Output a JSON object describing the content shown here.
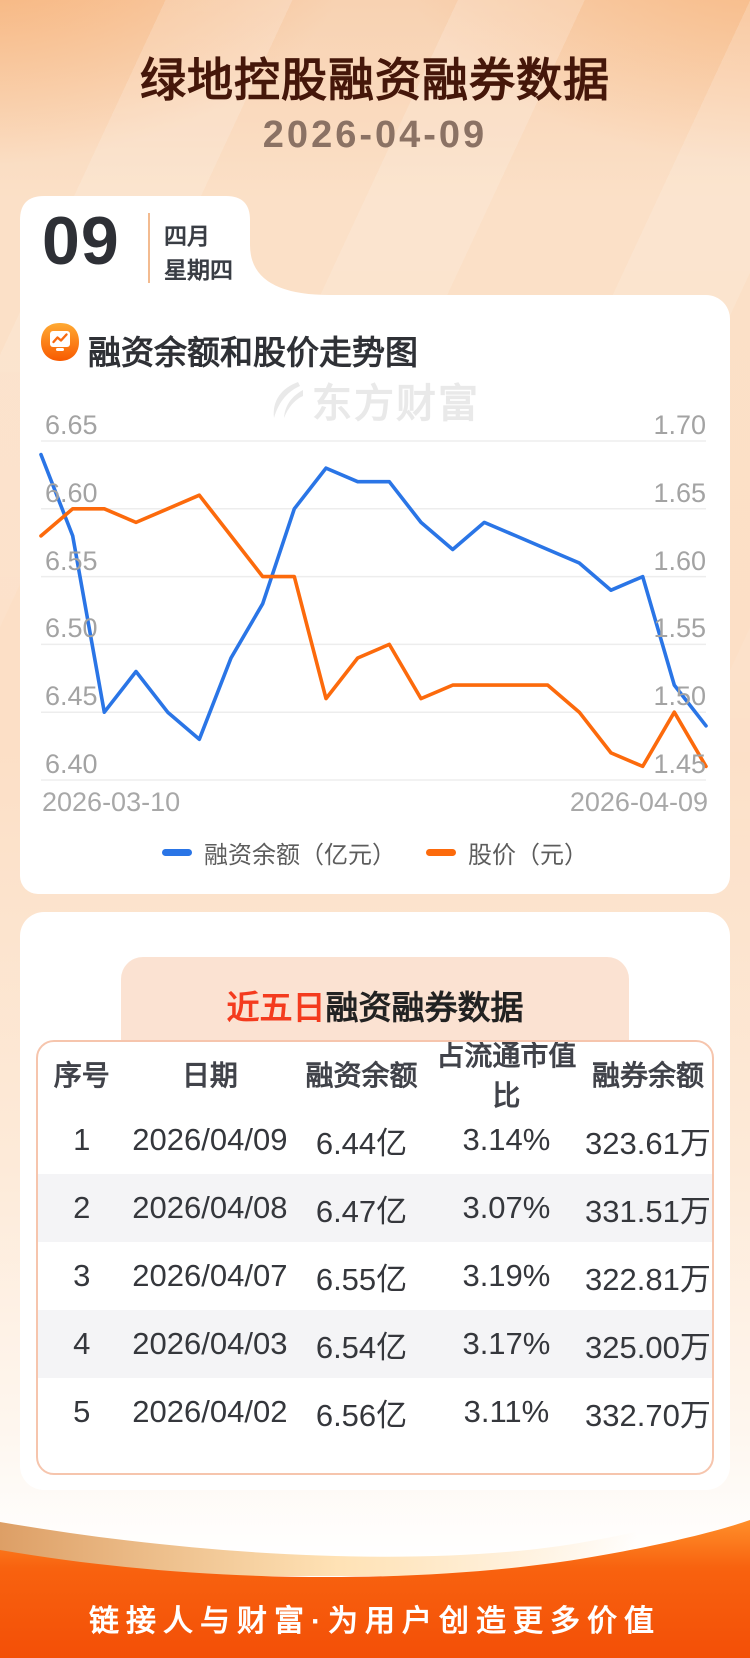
{
  "header": {
    "title": "绿地控股融资融券数据",
    "date": "2026-04-09"
  },
  "calendar": {
    "day": "09",
    "month": "四月",
    "weekday": "星期四"
  },
  "chart_section": {
    "title": "融资余额和股价走势图"
  },
  "watermark": {
    "text": "东方财富"
  },
  "chart_data": {
    "type": "line",
    "title": "融资余额和股价走势图",
    "x_start_label": "2026-03-10",
    "x_end_label": "2026-04-09",
    "grid": true,
    "legend_position": "bottom",
    "left_axis": {
      "min": 6.4,
      "max": 6.65,
      "tick_labels": [
        "6.65",
        "6.60",
        "6.55",
        "6.50",
        "6.45",
        "6.40"
      ]
    },
    "right_axis": {
      "min": 1.45,
      "max": 1.7,
      "tick_labels": [
        "1.70",
        "1.65",
        "1.60",
        "1.55",
        "1.50",
        "1.45"
      ]
    },
    "series": [
      {
        "name": "融资余额（亿元）",
        "axis": "left",
        "color": "#2a75e6",
        "values": [
          6.64,
          6.58,
          6.45,
          6.48,
          6.45,
          6.43,
          6.49,
          6.53,
          6.6,
          6.63,
          6.62,
          6.62,
          6.59,
          6.57,
          6.59,
          6.58,
          6.57,
          6.56,
          6.54,
          6.55,
          6.47,
          6.44
        ]
      },
      {
        "name": "股价（元）",
        "axis": "right",
        "color": "#fc6a0c",
        "values": [
          1.63,
          1.65,
          1.65,
          1.64,
          1.65,
          1.66,
          1.63,
          1.6,
          1.6,
          1.51,
          1.54,
          1.55,
          1.51,
          1.52,
          1.52,
          1.52,
          1.52,
          1.5,
          1.47,
          1.46,
          1.5,
          1.46
        ]
      }
    ]
  },
  "table_section": {
    "title_highlight": "近五日",
    "title_rest": "融资融券数据",
    "columns": [
      "序号",
      "日期",
      "融资余额",
      "占流通市值比",
      "融券余额"
    ],
    "rows": [
      [
        "1",
        "2026/04/09",
        "6.44亿",
        "3.14%",
        "323.61万"
      ],
      [
        "2",
        "2026/04/08",
        "6.47亿",
        "3.07%",
        "331.51万"
      ],
      [
        "3",
        "2026/04/07",
        "6.55亿",
        "3.19%",
        "322.81万"
      ],
      [
        "4",
        "2026/04/03",
        "6.54亿",
        "3.17%",
        "325.00万"
      ],
      [
        "5",
        "2026/04/02",
        "6.56亿",
        "3.11%",
        "332.70万"
      ]
    ]
  },
  "footer": {
    "slogan": "链接人与财富·为用户创造更多价值"
  },
  "colors": {
    "title": "#45170a",
    "blue_line": "#2a75e6",
    "orange_line": "#fc6a0c",
    "badge_bg": "#fbe2d2",
    "badge_highlight": "#f43b1e",
    "footer_orange": "#f4540a",
    "row_stripe": "#f4f4f6",
    "table_border": "#f6c5ad"
  }
}
